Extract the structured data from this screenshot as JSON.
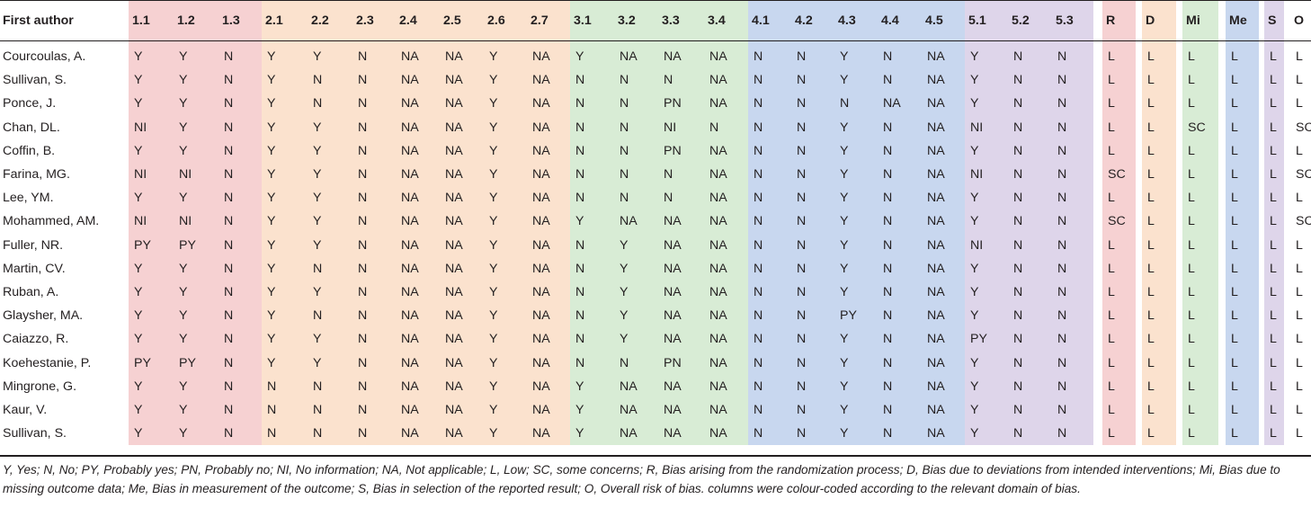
{
  "table": {
    "author_header": "First author",
    "columns": [
      {
        "label": "1.1",
        "group": "R"
      },
      {
        "label": "1.2",
        "group": "R"
      },
      {
        "label": "1.3",
        "group": "R"
      },
      {
        "label": "2.1",
        "group": "D"
      },
      {
        "label": "2.2",
        "group": "D"
      },
      {
        "label": "2.3",
        "group": "D"
      },
      {
        "label": "2.4",
        "group": "D"
      },
      {
        "label": "2.5",
        "group": "D"
      },
      {
        "label": "2.6",
        "group": "D"
      },
      {
        "label": "2.7",
        "group": "D"
      },
      {
        "label": "3.1",
        "group": "M"
      },
      {
        "label": "3.2",
        "group": "M"
      },
      {
        "label": "3.3",
        "group": "M"
      },
      {
        "label": "3.4",
        "group": "M"
      },
      {
        "label": "4.1",
        "group": "E"
      },
      {
        "label": "4.2",
        "group": "E"
      },
      {
        "label": "4.3",
        "group": "E"
      },
      {
        "label": "4.4",
        "group": "E"
      },
      {
        "label": "4.5",
        "group": "E"
      },
      {
        "label": "5.1",
        "group": "S"
      },
      {
        "label": "5.2",
        "group": "S"
      },
      {
        "label": "5.3",
        "group": "S"
      },
      {
        "label": "R",
        "group": "R"
      },
      {
        "label": "D",
        "group": "D"
      },
      {
        "label": "Mi",
        "group": "M"
      },
      {
        "label": "Me",
        "group": "E"
      },
      {
        "label": "S",
        "group": "S"
      },
      {
        "label": "O",
        "group": "0"
      }
    ],
    "colors": {
      "R": "#f6d1d2",
      "D": "#fbe2ce",
      "M": "#d8ecd5",
      "E": "#c8d7ef",
      "S": "#ded5ea",
      "0": "#ffffff"
    },
    "rows": [
      {
        "author": "Courcoulas, A.",
        "values": [
          "Y",
          "Y",
          "N",
          "Y",
          "Y",
          "N",
          "NA",
          "NA",
          "Y",
          "NA",
          "Y",
          "NA",
          "NA",
          "NA",
          "N",
          "N",
          "Y",
          "N",
          "NA",
          "Y",
          "N",
          "N",
          "L",
          "L",
          "L",
          "L",
          "L",
          "L"
        ]
      },
      {
        "author": "Sullivan, S.",
        "values": [
          "Y",
          "Y",
          "N",
          "Y",
          "N",
          "N",
          "NA",
          "NA",
          "Y",
          "NA",
          "N",
          "N",
          "N",
          "NA",
          "N",
          "N",
          "Y",
          "N",
          "NA",
          "Y",
          "N",
          "N",
          "L",
          "L",
          "L",
          "L",
          "L",
          "L"
        ]
      },
      {
        "author": "Ponce, J.",
        "values": [
          "Y",
          "Y",
          "N",
          "Y",
          "N",
          "N",
          "NA",
          "NA",
          "Y",
          "NA",
          "N",
          "N",
          "PN",
          "NA",
          "N",
          "N",
          "N",
          "NA",
          "NA",
          "Y",
          "N",
          "N",
          "L",
          "L",
          "L",
          "L",
          "L",
          "L"
        ]
      },
      {
        "author": "Chan, DL.",
        "values": [
          "NI",
          "Y",
          "N",
          "Y",
          "Y",
          "N",
          "NA",
          "NA",
          "Y",
          "NA",
          "N",
          "N",
          "NI",
          "N",
          "N",
          "N",
          "Y",
          "N",
          "NA",
          "NI",
          "N",
          "N",
          "L",
          "L",
          "SC",
          "L",
          "L",
          "SC"
        ]
      },
      {
        "author": "Coffin, B.",
        "values": [
          "Y",
          "Y",
          "N",
          "Y",
          "Y",
          "N",
          "NA",
          "NA",
          "Y",
          "NA",
          "N",
          "N",
          "PN",
          "NA",
          "N",
          "N",
          "Y",
          "N",
          "NA",
          "Y",
          "N",
          "N",
          "L",
          "L",
          "L",
          "L",
          "L",
          "L"
        ]
      },
      {
        "author": "Farina, MG.",
        "values": [
          "NI",
          "NI",
          "N",
          "Y",
          "Y",
          "N",
          "NA",
          "NA",
          "Y",
          "NA",
          "N",
          "N",
          "N",
          "NA",
          "N",
          "N",
          "Y",
          "N",
          "NA",
          "NI",
          "N",
          "N",
          "SC",
          "L",
          "L",
          "L",
          "L",
          "SC"
        ]
      },
      {
        "author": "Lee, YM.",
        "values": [
          "Y",
          "Y",
          "N",
          "Y",
          "Y",
          "N",
          "NA",
          "NA",
          "Y",
          "NA",
          "N",
          "N",
          "N",
          "NA",
          "N",
          "N",
          "Y",
          "N",
          "NA",
          "Y",
          "N",
          "N",
          "L",
          "L",
          "L",
          "L",
          "L",
          "L"
        ]
      },
      {
        "author": "Mohammed, AM.",
        "values": [
          "NI",
          "NI",
          "N",
          "Y",
          "Y",
          "N",
          "NA",
          "NA",
          "Y",
          "NA",
          "Y",
          "NA",
          "NA",
          "NA",
          "N",
          "N",
          "Y",
          "N",
          "NA",
          "Y",
          "N",
          "N",
          "SC",
          "L",
          "L",
          "L",
          "L",
          "SC"
        ]
      },
      {
        "author": "Fuller, NR.",
        "values": [
          "PY",
          "PY",
          "N",
          "Y",
          "Y",
          "N",
          "NA",
          "NA",
          "Y",
          "NA",
          "N",
          "Y",
          "NA",
          "NA",
          "N",
          "N",
          "Y",
          "N",
          "NA",
          "NI",
          "N",
          "N",
          "L",
          "L",
          "L",
          "L",
          "L",
          "L"
        ]
      },
      {
        "author": "Martin, CV.",
        "values": [
          "Y",
          "Y",
          "N",
          "Y",
          "N",
          "N",
          "NA",
          "NA",
          "Y",
          "NA",
          "N",
          "Y",
          "NA",
          "NA",
          "N",
          "N",
          "Y",
          "N",
          "NA",
          "Y",
          "N",
          "N",
          "L",
          "L",
          "L",
          "L",
          "L",
          "L"
        ]
      },
      {
        "author": "Ruban, A.",
        "values": [
          "Y",
          "Y",
          "N",
          "Y",
          "Y",
          "N",
          "NA",
          "NA",
          "Y",
          "NA",
          "N",
          "Y",
          "NA",
          "NA",
          "N",
          "N",
          "Y",
          "N",
          "NA",
          "Y",
          "N",
          "N",
          "L",
          "L",
          "L",
          "L",
          "L",
          "L"
        ]
      },
      {
        "author": "Glaysher, MA.",
        "values": [
          "Y",
          "Y",
          "N",
          "Y",
          "N",
          "N",
          "NA",
          "NA",
          "Y",
          "NA",
          "N",
          "Y",
          "NA",
          "NA",
          "N",
          "N",
          "PY",
          "N",
          "NA",
          "Y",
          "N",
          "N",
          "L",
          "L",
          "L",
          "L",
          "L",
          "L"
        ]
      },
      {
        "author": "Caiazzo, R.",
        "values": [
          "Y",
          "Y",
          "N",
          "Y",
          "Y",
          "N",
          "NA",
          "NA",
          "Y",
          "NA",
          "N",
          "Y",
          "NA",
          "NA",
          "N",
          "N",
          "Y",
          "N",
          "NA",
          "PY",
          "N",
          "N",
          "L",
          "L",
          "L",
          "L",
          "L",
          "L"
        ]
      },
      {
        "author": "Koehestanie, P.",
        "values": [
          "PY",
          "PY",
          "N",
          "Y",
          "Y",
          "N",
          "NA",
          "NA",
          "Y",
          "NA",
          "N",
          "N",
          "PN",
          "NA",
          "N",
          "N",
          "Y",
          "N",
          "NA",
          "Y",
          "N",
          "N",
          "L",
          "L",
          "L",
          "L",
          "L",
          "L"
        ]
      },
      {
        "author": "Mingrone, G.",
        "values": [
          "Y",
          "Y",
          "N",
          "N",
          "N",
          "N",
          "NA",
          "NA",
          "Y",
          "NA",
          "Y",
          "NA",
          "NA",
          "NA",
          "N",
          "N",
          "Y",
          "N",
          "NA",
          "Y",
          "N",
          "N",
          "L",
          "L",
          "L",
          "L",
          "L",
          "L"
        ]
      },
      {
        "author": "Kaur, V.",
        "values": [
          "Y",
          "Y",
          "N",
          "N",
          "N",
          "N",
          "NA",
          "NA",
          "Y",
          "NA",
          "Y",
          "NA",
          "NA",
          "NA",
          "N",
          "N",
          "Y",
          "N",
          "NA",
          "Y",
          "N",
          "N",
          "L",
          "L",
          "L",
          "L",
          "L",
          "L"
        ]
      },
      {
        "author": "Sullivan, S.",
        "values": [
          "Y",
          "Y",
          "N",
          "N",
          "N",
          "N",
          "NA",
          "NA",
          "Y",
          "NA",
          "Y",
          "NA",
          "NA",
          "NA",
          "N",
          "N",
          "Y",
          "N",
          "NA",
          "Y",
          "N",
          "N",
          "L",
          "L",
          "L",
          "L",
          "L",
          "L"
        ]
      }
    ]
  },
  "footnote": "Y, Yes; N, No; PY, Probably yes; PN, Probably no; NI, No information; NA, Not applicable; L, Low; SC, some concerns; R, Bias arising from the randomization process; D, Bias due to deviations from intended interventions; Mi, Bias due to missing outcome data; Me, Bias in measurement of the outcome; S, Bias in selection of the reported result; O, Overall risk of bias. columns were colour-coded according to the relevant domain of bias."
}
